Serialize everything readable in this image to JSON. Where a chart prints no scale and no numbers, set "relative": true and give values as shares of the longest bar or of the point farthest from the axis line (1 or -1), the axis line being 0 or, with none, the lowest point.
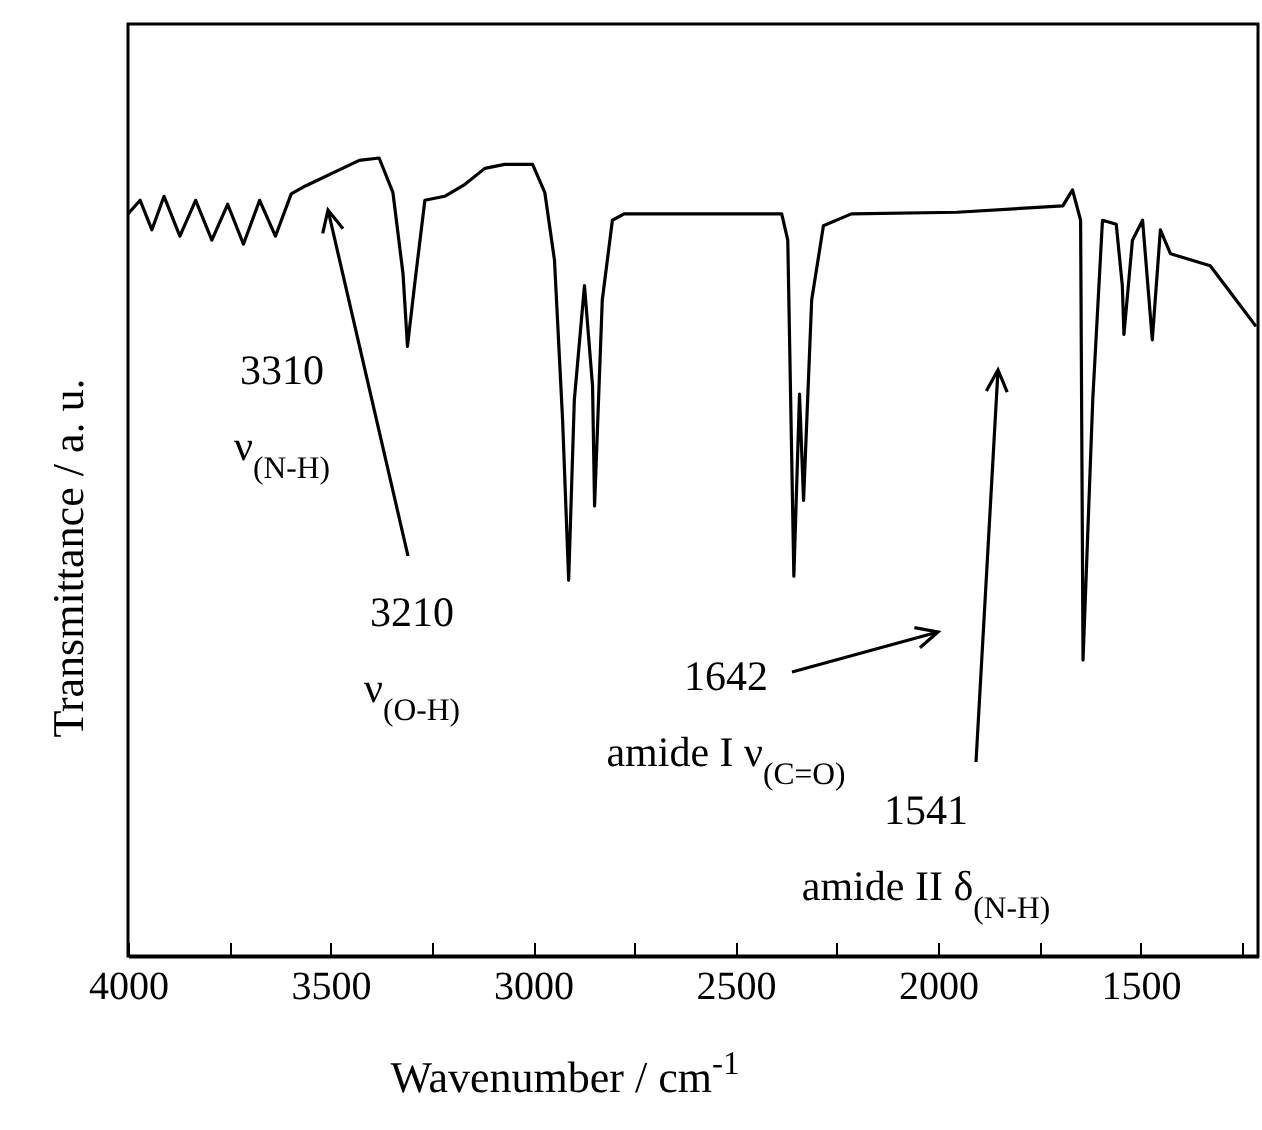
{
  "chart_data": {
    "type": "line",
    "xlabel": "Wavenumber / cm$^{-1}$",
    "ylabel": "Transmittance / a. u.",
    "relative": true,
    "xlim": [
      4000,
      1210
    ],
    "xticks": [
      4000,
      {
        "value": 3750,
        "label": null
      },
      3500,
      {
        "value": 3250,
        "label": null
      },
      3000,
      {
        "value": 2750,
        "label": null
      },
      2500,
      {
        "value": 2250,
        "label": null
      },
      2000,
      {
        "value": 1750,
        "label": null
      },
      1500,
      {
        "value": 1250,
        "label": null
      }
    ],
    "x": [
      4000,
      3970,
      3941,
      3911,
      3872,
      3833,
      3793,
      3754,
      3715,
      3675,
      3636,
      3597,
      3562,
      3429,
      3380,
      3346,
      3321,
      3310,
      3291,
      3267,
      3218,
      3168,
      3119,
      3070,
      3001,
      2971,
      2947,
      2927,
      2912,
      2898,
      2873,
      2853,
      2848,
      2829,
      2804,
      2775,
      2386,
      2371,
      2356,
      2342,
      2332,
      2312,
      2283,
      2214,
      1953,
      1692,
      1668,
      1648,
      1642,
      1618,
      1594,
      1560,
      1545,
      1541,
      1520,
      1495,
      1471,
      1451,
      1426,
      1328,
      1264,
      1215
    ],
    "series": [
      {
        "color": "#000000",
        "values": [
          0.93,
          0.947,
          0.91,
          0.952,
          0.902,
          0.947,
          0.897,
          0.942,
          0.892,
          0.947,
          0.902,
          0.955,
          0.965,
          0.997,
          1.0,
          0.957,
          0.855,
          0.764,
          0.847,
          0.947,
          0.952,
          0.967,
          0.987,
          0.992,
          0.992,
          0.957,
          0.872,
          0.672,
          0.471,
          0.697,
          0.84,
          0.714,
          0.564,
          0.822,
          0.922,
          0.93,
          0.93,
          0.897,
          0.476,
          0.704,
          0.571,
          0.822,
          0.915,
          0.93,
          0.932,
          0.94,
          0.96,
          0.922,
          0.371,
          0.697,
          0.922,
          0.917,
          0.84,
          0.779,
          0.897,
          0.922,
          0.772,
          0.91,
          0.88,
          0.865,
          0.822,
          0.789
        ]
      }
    ],
    "annotations": [
      "3310\nν$_{(N-H)}$",
      "3210\nν$_{(O-H)}$",
      "1642\namide I ν$_{(C=O)}$",
      "1541\namide II δ$_{(N-H)}$"
    ]
  }
}
